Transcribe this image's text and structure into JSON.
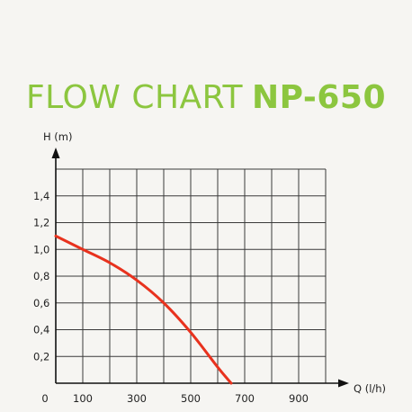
{
  "chart_data": {
    "type": "line",
    "title_light": "FLOW CHART",
    "title_bold": "NP-650",
    "xlabel": "Q (l/h)",
    "ylabel": "H (m)",
    "xlim": [
      0,
      1000
    ],
    "ylim": [
      0,
      1.6
    ],
    "x_ticks": [
      0,
      100,
      300,
      500,
      700,
      900
    ],
    "x_tick_labels": [
      "0",
      "100",
      "300",
      "500",
      "700",
      "900"
    ],
    "y_ticks": [
      0.2,
      0.4,
      0.6,
      0.8,
      1.0,
      1.2,
      1.4
    ],
    "y_tick_labels": [
      "0,2",
      "0,4",
      "0,6",
      "0,8",
      "1,0",
      "1,2",
      "1,4"
    ],
    "grid": true,
    "series": [
      {
        "color": "#e8321e",
        "x": [
          0,
          100,
          200,
          300,
          400,
          500,
          600,
          650
        ],
        "y": [
          1.1,
          1.0,
          0.9,
          0.77,
          0.6,
          0.38,
          0.12,
          0.0
        ]
      }
    ]
  }
}
